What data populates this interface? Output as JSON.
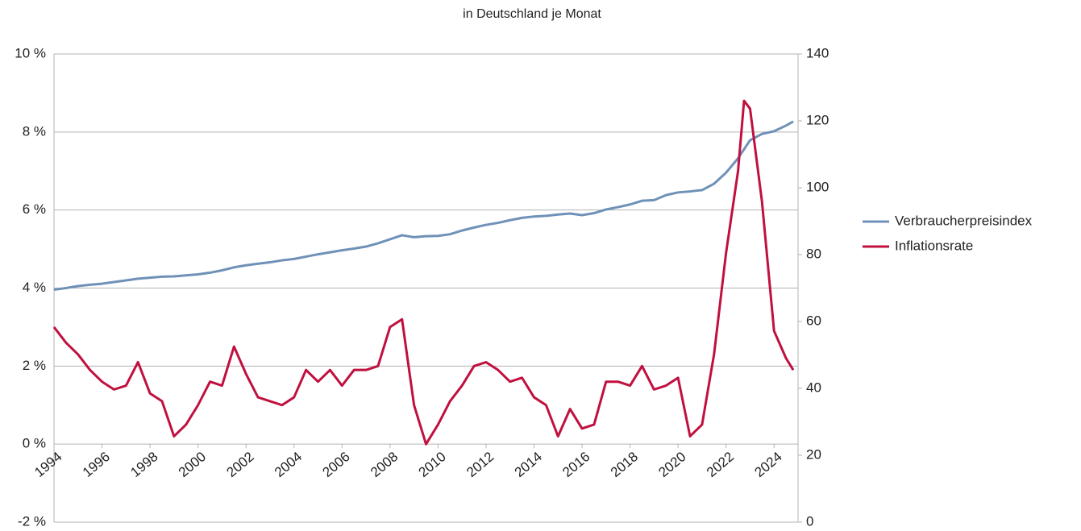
{
  "chart_data": {
    "type": "line",
    "title": "in Deutschland je Monat",
    "x": [
      1994,
      1994.5,
      1995,
      1995.5,
      1996,
      1996.5,
      1997,
      1997.5,
      1998,
      1998.5,
      1999,
      1999.5,
      2000,
      2000.5,
      2001,
      2001.5,
      2002,
      2002.5,
      2003,
      2003.5,
      2004,
      2004.5,
      2005,
      2005.5,
      2006,
      2006.5,
      2007,
      2007.5,
      2008,
      2008.5,
      2009,
      2009.5,
      2010,
      2010.5,
      2011,
      2011.5,
      2012,
      2012.5,
      2013,
      2013.5,
      2014,
      2014.5,
      2015,
      2015.5,
      2016,
      2016.5,
      2017,
      2017.5,
      2018,
      2018.5,
      2019,
      2019.5,
      2020,
      2020.5,
      2021,
      2021.5,
      2022,
      2022.5,
      2022.75,
      2023,
      2023.5,
      2024,
      2024.5,
      2024.8
    ],
    "series": [
      {
        "name": "Verbraucherpreisindex",
        "color": "#6f91b8",
        "axis": "y2",
        "values": [
          69.5,
          70,
          70.6,
          71,
          71.3,
          71.8,
          72.3,
          72.8,
          73.1,
          73.4,
          73.5,
          73.8,
          74.1,
          74.6,
          75.3,
          76.2,
          76.8,
          77.3,
          77.7,
          78.3,
          78.7,
          79.4,
          80.1,
          80.7,
          81.3,
          81.8,
          82.4,
          83.4,
          84.6,
          85.8,
          85.2,
          85.5,
          85.6,
          86.1,
          87.2,
          88.1,
          88.9,
          89.5,
          90.3,
          91.0,
          91.4,
          91.6,
          92,
          92.3,
          91.8,
          92.4,
          93.5,
          94.2,
          95.0,
          96.1,
          96.3,
          97.8,
          98.6,
          98.9,
          99.3,
          101.2,
          104.5,
          108.8,
          111.5,
          114.2,
          116.1,
          116.9,
          118.6,
          119.8
        ]
      },
      {
        "name": "Inflationsrate",
        "color": "#c0103f",
        "values": [
          3.0,
          2.6,
          2.3,
          1.9,
          1.6,
          1.4,
          1.5,
          2.1,
          1.3,
          1.1,
          0.2,
          0.5,
          1.0,
          1.6,
          1.5,
          2.5,
          1.8,
          1.2,
          1.1,
          1.0,
          1.2,
          1.9,
          1.6,
          1.9,
          1.5,
          1.9,
          1.9,
          2.0,
          3.0,
          3.2,
          1.0,
          0.0,
          0.5,
          1.1,
          1.5,
          2.0,
          2.1,
          1.9,
          1.6,
          1.7,
          1.2,
          1.0,
          0.2,
          0.9,
          0.4,
          0.5,
          1.6,
          1.6,
          1.5,
          2.0,
          1.4,
          1.5,
          1.7,
          0.2,
          0.5,
          2.3,
          4.9,
          7.0,
          8.8,
          8.6,
          6.2,
          2.9,
          2.2,
          1.9
        ]
      }
    ],
    "xlim": [
      1994,
      2025
    ],
    "xticks": [
      1994,
      1996,
      1998,
      2000,
      2002,
      2004,
      2006,
      2008,
      2010,
      2012,
      2014,
      2016,
      2018,
      2020,
      2022,
      2024
    ],
    "ylim": [
      -2,
      10
    ],
    "yticks": [
      {
        "value": -2,
        "label": "-2 %"
      },
      {
        "value": 0,
        "label": "0 %"
      },
      {
        "value": 2,
        "label": "2 %"
      },
      {
        "value": 4,
        "label": "4 %"
      },
      {
        "value": 6,
        "label": "6 %"
      },
      {
        "value": 8,
        "label": "8 %"
      },
      {
        "value": 10,
        "label": "10 %"
      }
    ],
    "y2lim": [
      0,
      140
    ],
    "y2ticks": [
      0,
      20,
      40,
      60,
      80,
      100,
      120,
      140
    ],
    "grid": true,
    "legend": "right"
  }
}
